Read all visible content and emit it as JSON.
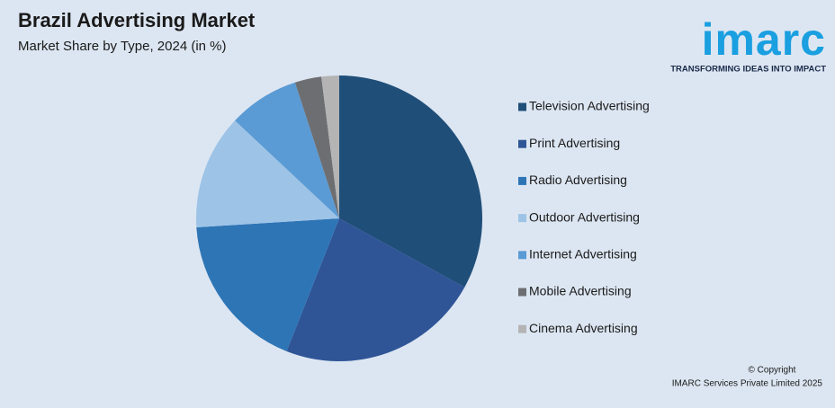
{
  "chart_data": {
    "type": "pie",
    "title": "Brazil Advertising Market",
    "subtitle": "Market Share by Type, 2024 (in %)",
    "categories": [
      "Television Advertising",
      "Print Advertising",
      "Radio Advertising",
      "Outdoor Advertising",
      "Internet Advertising",
      "Mobile Advertising",
      "Cinema Advertising"
    ],
    "values": [
      33,
      23,
      18,
      13,
      8,
      3,
      2
    ],
    "colors": [
      "#1f4e79",
      "#2f5597",
      "#2e75b6",
      "#9dc3e6",
      "#5b9bd5",
      "#6d6e71",
      "#b4b4b4"
    ],
    "legend": "right"
  },
  "branding": {
    "logo": "imarc",
    "tagline": "TRANSFORMING IDEAS INTO IMPACT",
    "copyright": "© Copyright",
    "owner": "IMARC Services Private Limited 2025"
  }
}
